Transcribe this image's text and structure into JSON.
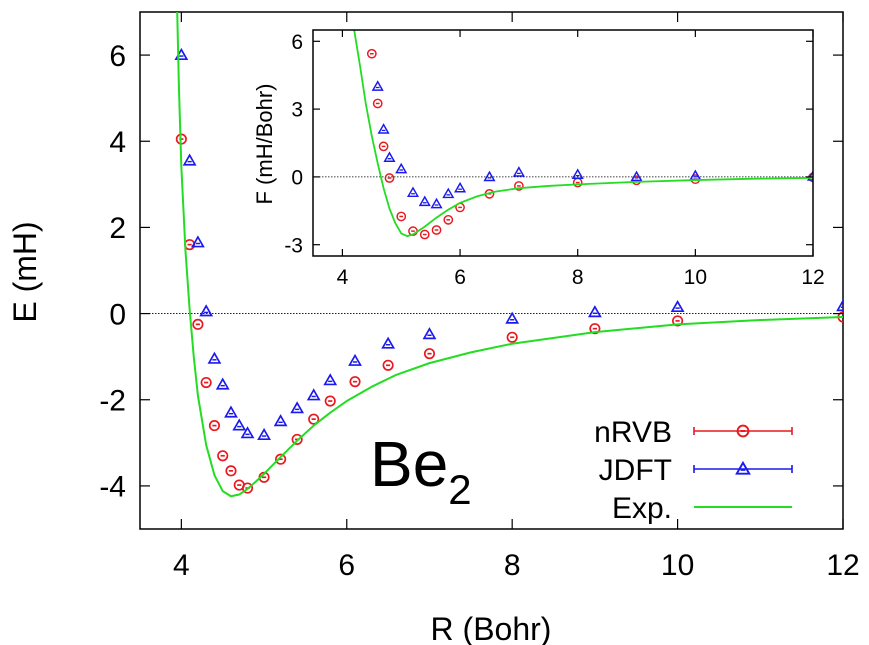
{
  "chart_data": [
    {
      "type": "scatter",
      "xlabel": "R (Bohr)",
      "ylabel": "E (mH)",
      "xlim": [
        3.5,
        12.0
      ],
      "ylim": [
        -5.0,
        7.0
      ],
      "xticks": [
        "4",
        "6",
        "8",
        "10",
        "12"
      ],
      "yticks": [
        "-4",
        "-2",
        "0",
        "2",
        "4",
        "6"
      ],
      "zero_line": true,
      "grid": false,
      "legend_position": "bottom-right",
      "annotation": {
        "text": "Be",
        "subscript": "2"
      },
      "series": [
        {
          "name": "nRVB",
          "color": "#e8191f",
          "marker": "circle",
          "x": [
            4.0,
            4.1,
            4.2,
            4.3,
            4.4,
            4.5,
            4.6,
            4.7,
            4.8,
            5.0,
            5.2,
            5.4,
            5.6,
            5.8,
            6.1,
            6.5,
            7.0,
            8.0,
            9.0,
            10.0,
            12.0
          ],
          "y": [
            4.05,
            1.6,
            -0.25,
            -1.6,
            -2.6,
            -3.3,
            -3.65,
            -3.98,
            -4.05,
            -3.8,
            -3.38,
            -2.92,
            -2.45,
            -2.03,
            -1.58,
            -1.2,
            -0.93,
            -0.55,
            -0.35,
            -0.17,
            -0.08
          ]
        },
        {
          "name": "JDFT",
          "color": "#1a1aee",
          "marker": "triangle",
          "x": [
            4.0,
            4.1,
            4.2,
            4.3,
            4.4,
            4.5,
            4.6,
            4.7,
            4.8,
            5.0,
            5.2,
            5.4,
            5.6,
            5.8,
            6.1,
            6.5,
            7.0,
            8.0,
            9.0,
            10.0,
            12.0
          ],
          "y": [
            6.0,
            3.55,
            1.65,
            0.05,
            -1.05,
            -1.65,
            -2.3,
            -2.6,
            -2.78,
            -2.82,
            -2.5,
            -2.2,
            -1.9,
            -1.55,
            -1.1,
            -0.7,
            -0.48,
            -0.12,
            0.03,
            0.15,
            0.17
          ]
        },
        {
          "name": "Exp.",
          "color": "#22dd22",
          "marker": "line",
          "x": [
            3.95,
            3.97,
            4.0,
            4.05,
            4.1,
            4.15,
            4.2,
            4.3,
            4.4,
            4.5,
            4.6,
            4.7,
            4.8,
            4.9,
            5.0,
            5.2,
            5.4,
            5.6,
            5.8,
            6.0,
            6.3,
            6.6,
            7.0,
            7.5,
            8.0,
            9.0,
            10.0,
            11.0,
            12.0
          ],
          "y": [
            7.0,
            5.3,
            3.4,
            1.45,
            0.1,
            -1.0,
            -1.9,
            -3.05,
            -3.75,
            -4.12,
            -4.24,
            -4.2,
            -4.07,
            -3.9,
            -3.72,
            -3.33,
            -2.95,
            -2.6,
            -2.3,
            -2.03,
            -1.7,
            -1.42,
            -1.15,
            -0.9,
            -0.7,
            -0.43,
            -0.25,
            -0.15,
            -0.08
          ]
        }
      ]
    },
    {
      "type": "scatter",
      "xlabel": "",
      "ylabel": "F (mH/Bohr)",
      "xlim": [
        3.5,
        12.0
      ],
      "ylim": [
        -3.5,
        6.5
      ],
      "xticks": [
        "4",
        "6",
        "8",
        "10",
        "12"
      ],
      "yticks": [
        "-3",
        "0",
        "3",
        "6"
      ],
      "zero_line": true,
      "grid": false,
      "series": [
        {
          "name": "nRVB",
          "color": "#e8191f",
          "marker": "circle",
          "x": [
            4.5,
            4.6,
            4.7,
            4.8,
            5.0,
            5.2,
            5.4,
            5.6,
            5.8,
            6.0,
            6.5,
            7.0,
            8.0,
            9.0,
            10.0,
            12.0
          ],
          "y": [
            5.45,
            3.25,
            1.35,
            -0.05,
            -1.75,
            -2.4,
            -2.55,
            -2.35,
            -1.9,
            -1.35,
            -0.75,
            -0.4,
            -0.25,
            -0.15,
            -0.1,
            -0.02
          ]
        },
        {
          "name": "JDFT",
          "color": "#1a1aee",
          "marker": "triangle",
          "x": [
            4.6,
            4.7,
            4.8,
            5.0,
            5.2,
            5.4,
            5.6,
            5.8,
            6.0,
            6.5,
            7.0,
            8.0,
            9.0,
            10.0,
            12.0
          ],
          "y": [
            4.0,
            2.1,
            0.85,
            0.35,
            -0.7,
            -1.1,
            -1.2,
            -0.75,
            -0.5,
            0.0,
            0.2,
            0.1,
            0.0,
            0.05,
            0.02
          ]
        },
        {
          "name": "Exp.",
          "color": "#22dd22",
          "marker": "line",
          "x": [
            4.2,
            4.3,
            4.4,
            4.5,
            4.6,
            4.7,
            4.8,
            4.9,
            5.0,
            5.1,
            5.2,
            5.4,
            5.6,
            5.8,
            6.0,
            6.3,
            6.6,
            7.0,
            7.5,
            8.0,
            9.0,
            10.0,
            11.0,
            12.0
          ],
          "y": [
            6.5,
            4.9,
            3.2,
            1.8,
            0.6,
            -0.5,
            -1.4,
            -2.05,
            -2.5,
            -2.62,
            -2.55,
            -2.2,
            -1.8,
            -1.45,
            -1.15,
            -0.85,
            -0.65,
            -0.5,
            -0.4,
            -0.33,
            -0.22,
            -0.14,
            -0.08,
            -0.04
          ]
        }
      ]
    }
  ]
}
